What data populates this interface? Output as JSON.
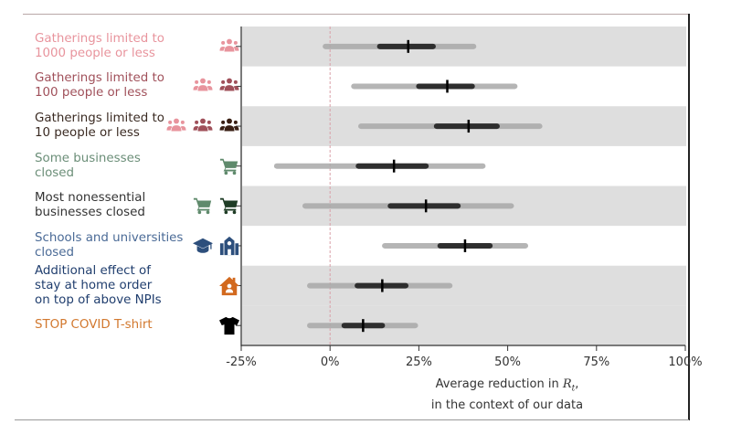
{
  "chart_data": {
    "type": "forest",
    "title": "",
    "xlabel_line1": "Average reduction in ",
    "xlabel_math": "R",
    "xlabel_sub": "t",
    "xlabel_line1_suffix": ",",
    "xlabel_line2": "in the context of our data",
    "xlim": [
      -25,
      100
    ],
    "xticks": [
      -25,
      0,
      25,
      50,
      75,
      100
    ],
    "xtick_labels": [
      "-25%",
      "0%",
      "25%",
      "50%",
      "75%",
      "100%"
    ],
    "reference_line": 0,
    "rows": [
      {
        "label_lines": [
          "Gatherings limited to",
          "1000 people or less"
        ],
        "color": "#e8949d",
        "icons": [
          {
            "name": "people-group-icon",
            "color": "#e8949d"
          }
        ],
        "ci95": [
          -1.3,
          40.4
        ],
        "ci50": [
          14,
          29
        ],
        "median": 22,
        "shaded": true
      },
      {
        "label_lines": [
          "Gatherings limited to",
          "100 people or less"
        ],
        "color": "#a0505a",
        "icons": [
          {
            "name": "people-group-icon",
            "color": "#e8949d"
          },
          {
            "name": "people-group-icon",
            "color": "#a0505a"
          }
        ],
        "ci95": [
          6.7,
          52
        ],
        "ci50": [
          25,
          40
        ],
        "median": 33,
        "shaded": false
      },
      {
        "label_lines": [
          "Gatherings limited to",
          "10 people or less"
        ],
        "color": "#3a2a22",
        "icons": [
          {
            "name": "people-group-icon",
            "color": "#e8949d"
          },
          {
            "name": "people-group-icon",
            "color": "#a0505a"
          },
          {
            "name": "people-group-icon",
            "color": "#3a1f14"
          }
        ],
        "ci95": [
          8.7,
          59
        ],
        "ci50": [
          30,
          47
        ],
        "median": 39,
        "shaded": true
      },
      {
        "label_lines": [
          "Some businesses",
          "closed"
        ],
        "color": "#6b8e78",
        "icons": [
          {
            "name": "shopping-cart-icon",
            "color": "#5f8a6c"
          }
        ],
        "ci95": [
          -15,
          43
        ],
        "ci50": [
          8,
          27
        ],
        "median": 18,
        "shaded": false
      },
      {
        "label_lines": [
          "Most nonessential",
          "businesses closed"
        ],
        "color": "#333333",
        "icons": [
          {
            "name": "shopping-cart-icon",
            "color": "#5f8a6c"
          },
          {
            "name": "shopping-cart-icon",
            "color": "#1f3d26"
          }
        ],
        "ci95": [
          -7,
          51
        ],
        "ci50": [
          17,
          36
        ],
        "median": 27,
        "shaded": true
      },
      {
        "label_lines": [
          "Schools and universities",
          "closed"
        ],
        "color": "#4a6a96",
        "icons": [
          {
            "name": "graduation-cap-icon",
            "color": "#2d4f7c"
          },
          {
            "name": "school-icon",
            "color": "#2d4f7c"
          }
        ],
        "ci95": [
          15.4,
          55
        ],
        "ci50": [
          31,
          45
        ],
        "median": 38,
        "shaded": false
      },
      {
        "label_lines": [
          "Additional effect of",
          "stay at home order",
          "on top of above NPIs"
        ],
        "color": "#203e6e",
        "icons": [
          {
            "name": "house-user-icon",
            "color": "#d2691e"
          }
        ],
        "ci95": [
          -5.7,
          33.7
        ],
        "ci50": [
          7.7,
          21.3
        ],
        "median": 14.7,
        "shaded": true
      },
      {
        "label_lines": [
          "STOP COVID T-shirt"
        ],
        "color": "#d2782e",
        "icons": [
          {
            "name": "tshirt-icon",
            "color": "#000000"
          }
        ],
        "ci95": [
          -5.7,
          24
        ],
        "ci50": [
          4,
          14.7
        ],
        "median": 9.3,
        "shaded": true
      }
    ],
    "colors": {
      "ci95": "#a9a9a9",
      "ci50": "#2e2e2e",
      "median": "#000000",
      "band": "#dedede",
      "reference_line": "#d9a0a8"
    }
  }
}
